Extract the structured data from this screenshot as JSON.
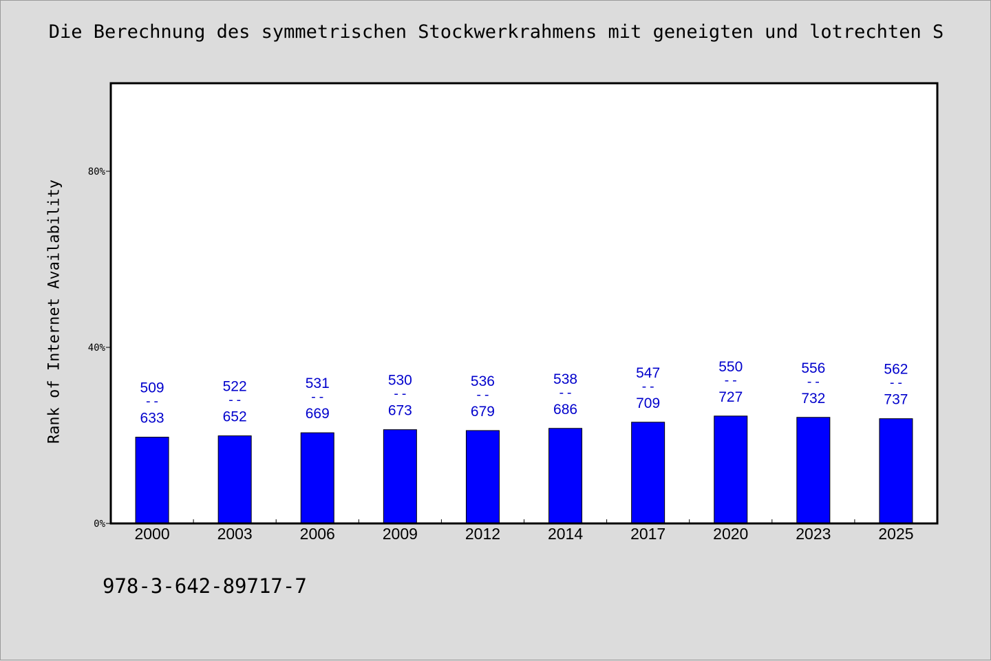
{
  "chart_data": {
    "type": "bar",
    "title": "Die Berechnung des symmetrischen Stockwerkrahmens mit geneigten und lotrechten S",
    "ylabel": "Rank of Internet Availability",
    "xlabel": "",
    "categories": [
      "2000",
      "2003",
      "2006",
      "2009",
      "2012",
      "2014",
      "2017",
      "2020",
      "2023",
      "2025"
    ],
    "values": [
      19.6,
      19.9,
      20.6,
      21.3,
      21.1,
      21.6,
      23.0,
      24.4,
      24.1,
      23.8
    ],
    "bar_labels": [
      {
        "top": "509",
        "bottom": "633"
      },
      {
        "top": "522",
        "bottom": "652"
      },
      {
        "top": "531",
        "bottom": "669"
      },
      {
        "top": "530",
        "bottom": "673"
      },
      {
        "top": "536",
        "bottom": "679"
      },
      {
        "top": "538",
        "bottom": "686"
      },
      {
        "top": "547",
        "bottom": "709"
      },
      {
        "top": "550",
        "bottom": "727"
      },
      {
        "top": "556",
        "bottom": "732"
      },
      {
        "top": "562",
        "bottom": "737"
      }
    ],
    "label_separator": "--",
    "yticks": [
      0,
      40,
      80
    ],
    "ytick_labels": [
      "0%",
      "40%",
      "80%"
    ],
    "ylim": [
      0,
      100
    ],
    "grid": false,
    "colors": {
      "bar": "#0000ff",
      "label": "#0000cc",
      "plot_bg": "#ffffff",
      "page_bg": "#dcdcdc"
    }
  },
  "footer": {
    "isbn": "978-3-642-89717-7"
  }
}
